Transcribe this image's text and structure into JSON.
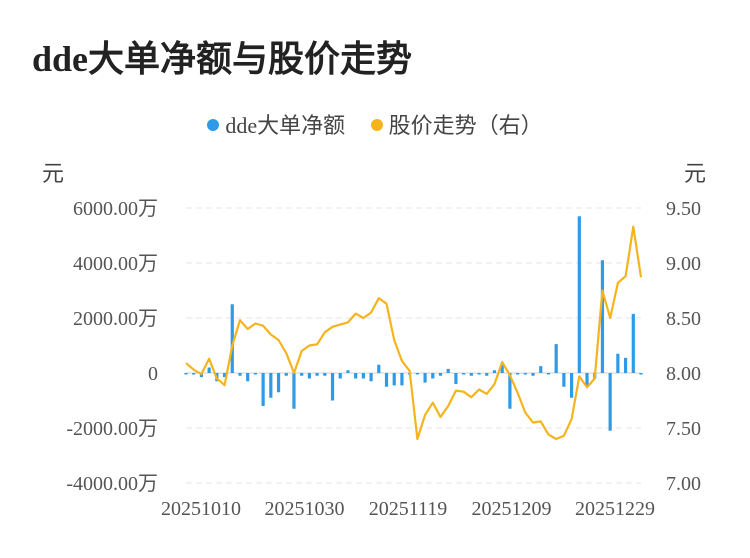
{
  "title": "dde大单净额与股价走势",
  "legend": [
    {
      "label": "dde大单净额",
      "color": "#2f9be8"
    },
    {
      "label": "股价走势（右）",
      "color": "#f5b41e"
    }
  ],
  "y_left_unit": "元",
  "y_right_unit": "元",
  "colors": {
    "bar": "#2f9be8",
    "line": "#f5b41e",
    "grid": "#e6e6e6"
  },
  "chart_data": {
    "type": "bar+line",
    "x_tick_labels": [
      "20251010",
      "20251030",
      "20251119",
      "20251209",
      "20251229"
    ],
    "y_left_ticks": [
      "6000.00万",
      "4000.00万",
      "2000.00万",
      "0",
      "-2000.00万",
      "-4000.00万"
    ],
    "y_right_ticks": [
      "9.50",
      "9.00",
      "8.50",
      "8.00",
      "7.50",
      "7.00"
    ],
    "y_left_range": [
      -4000,
      6000
    ],
    "y_right_range": [
      7.0,
      9.5
    ],
    "grid": true,
    "legend_position": "top-center",
    "series": [
      {
        "name": "dde大单净额",
        "type": "bar",
        "axis": "left",
        "unit": "万元",
        "values": [
          -50,
          -50,
          -150,
          200,
          -300,
          -150,
          2500,
          -100,
          -300,
          -50,
          -1200,
          -900,
          -700,
          -100,
          -1300,
          -100,
          -200,
          -100,
          -100,
          -1000,
          -200,
          100,
          -200,
          -200,
          -300,
          300,
          -500,
          -450,
          -450,
          -50,
          -50,
          -350,
          -200,
          -100,
          150,
          -400,
          -50,
          -100,
          -50,
          -100,
          100,
          300,
          -1300,
          -50,
          -50,
          -100,
          250,
          -50,
          1050,
          -500,
          -900,
          5700,
          -500,
          -200,
          4100,
          -2100,
          700,
          550,
          2150,
          -50
        ]
      },
      {
        "name": "股价走势（右）",
        "type": "line",
        "axis": "right",
        "unit": "元",
        "values": [
          8.09,
          8.03,
          7.99,
          8.13,
          7.95,
          7.89,
          8.25,
          8.48,
          8.4,
          8.45,
          8.43,
          8.35,
          8.3,
          8.18,
          8.0,
          8.2,
          8.25,
          8.26,
          8.37,
          8.42,
          8.44,
          8.46,
          8.54,
          8.5,
          8.55,
          8.68,
          8.63,
          8.3,
          8.11,
          8.02,
          7.4,
          7.62,
          7.73,
          7.6,
          7.7,
          7.84,
          7.83,
          7.78,
          7.85,
          7.81,
          7.9,
          8.1,
          7.98,
          7.82,
          7.64,
          7.55,
          7.56,
          7.44,
          7.4,
          7.43,
          7.58,
          7.97,
          7.87,
          7.95,
          8.75,
          8.5,
          8.82,
          8.88,
          9.33,
          8.87
        ]
      }
    ]
  }
}
